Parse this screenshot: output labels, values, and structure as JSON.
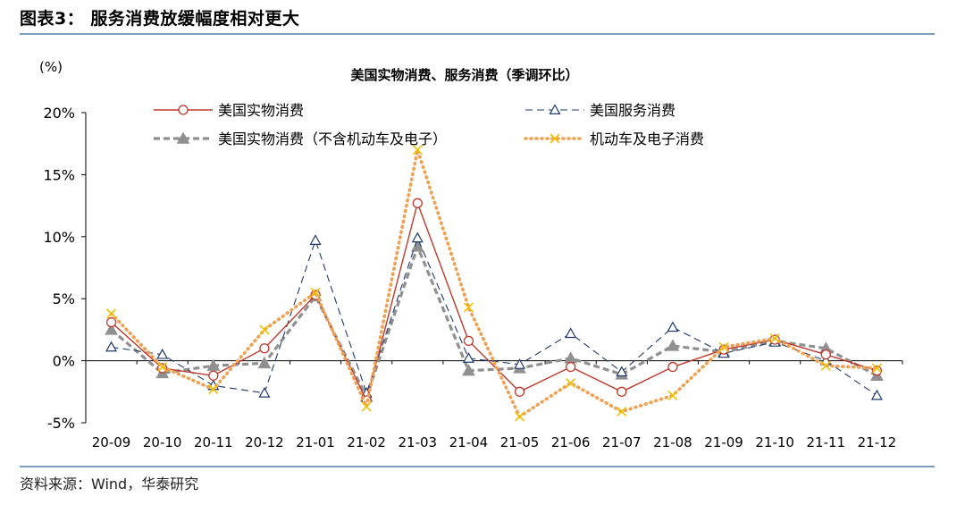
{
  "figure": {
    "title": "图表3： 服务消费放缓幅度相对更大",
    "source": "资料来源：Wind，华泰研究"
  },
  "chart_data": {
    "type": "line",
    "title": "美国实物消费、服务消费（季调环比）",
    "yunit": "(%)",
    "categories": [
      "20-09",
      "20-10",
      "20-11",
      "20-12",
      "21-01",
      "21-02",
      "21-03",
      "21-04",
      "21-05",
      "21-06",
      "21-07",
      "21-08",
      "21-09",
      "21-10",
      "21-11",
      "21-12"
    ],
    "yticks": [
      "20%",
      "15%",
      "10%",
      "5%",
      "0%",
      "-5%"
    ],
    "ylim": [
      -5,
      20
    ],
    "legend_position": "top",
    "series": [
      {
        "name": "美国实物消费",
        "color": "#c0392b",
        "style": "solid-circle",
        "values": [
          3.1,
          -0.6,
          -1.2,
          1.0,
          5.3,
          -3.2,
          12.7,
          1.6,
          -2.5,
          -0.5,
          -2.5,
          -0.5,
          0.9,
          1.7,
          0.5,
          -0.8
        ]
      },
      {
        "name": "美国服务消费",
        "color": "#1f3a6b",
        "style": "dash-triangle",
        "values": [
          1.1,
          0.5,
          -2.0,
          -2.6,
          9.7,
          -2.6,
          9.9,
          0.2,
          -0.3,
          2.2,
          -0.9,
          2.7,
          0.6,
          1.5,
          0.0,
          -2.8
        ]
      },
      {
        "name": "美国实物消费（不含机动车及电子）",
        "color": "#909090",
        "style": "dash-gray-triangle",
        "values": [
          2.5,
          -1.0,
          -0.4,
          -0.2,
          5.2,
          -2.9,
          9.2,
          -0.8,
          -0.6,
          0.2,
          -1.1,
          1.2,
          0.7,
          1.6,
          1.0,
          -1.2
        ]
      },
      {
        "name": "机动车及电子消费",
        "color": "#f0a050",
        "style": "dot-x",
        "values": [
          3.8,
          -0.5,
          -2.3,
          2.5,
          5.5,
          -3.7,
          17.0,
          4.3,
          -4.5,
          -1.8,
          -4.1,
          -2.8,
          1.1,
          1.8,
          -0.4,
          -0.6
        ]
      }
    ]
  }
}
